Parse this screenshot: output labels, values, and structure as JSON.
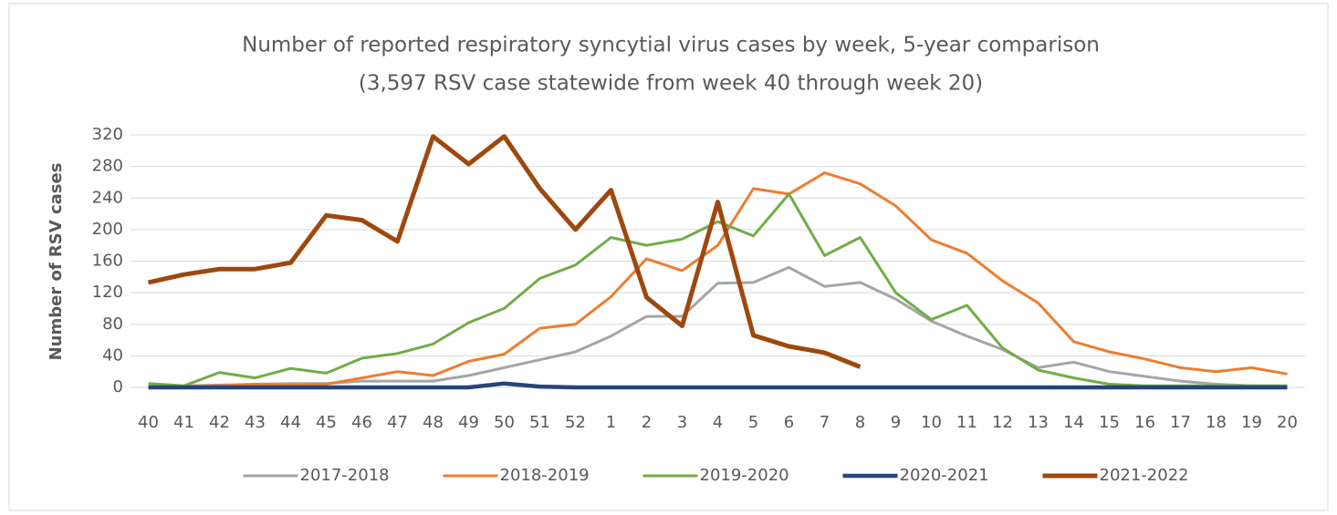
{
  "chart_data": {
    "type": "line",
    "title": "Number of reported respiratory syncytial virus cases by week, 5-year comparison",
    "subtitle": "(3,597 RSV case statewide from week 40 through week 20)",
    "y_label": "Number of RSV cases",
    "categories": [
      "40",
      "41",
      "42",
      "43",
      "44",
      "45",
      "46",
      "47",
      "48",
      "49",
      "50",
      "51",
      "52",
      "1",
      "2",
      "3",
      "4",
      "5",
      "6",
      "7",
      "8",
      "9",
      "10",
      "11",
      "12",
      "13",
      "14",
      "15",
      "16",
      "17",
      "18",
      "19",
      "20"
    ],
    "ylim": [
      0,
      320
    ],
    "yticks": [
      0,
      40,
      80,
      120,
      160,
      200,
      240,
      280,
      320
    ],
    "grid": true,
    "legend": "bottom",
    "series": [
      {
        "name": "2017-2018",
        "color": "#a5a5a5",
        "width": 3,
        "values": [
          2,
          2,
          3,
          4,
          5,
          5,
          8,
          8,
          8,
          15,
          25,
          35,
          45,
          65,
          90,
          90,
          132,
          133,
          152,
          128,
          133,
          112,
          84,
          65,
          48,
          25,
          32,
          20,
          14,
          8,
          4,
          2,
          2
        ]
      },
      {
        "name": "2018-2019",
        "color": "#ed7d31",
        "width": 3,
        "values": [
          0,
          1,
          2,
          4,
          3,
          4,
          12,
          20,
          15,
          33,
          42,
          75,
          80,
          115,
          163,
          148,
          180,
          252,
          245,
          272,
          258,
          230,
          187,
          170,
          135,
          107,
          58,
          45,
          36,
          25,
          20,
          25,
          17
        ]
      },
      {
        "name": "2019-2020",
        "color": "#70ad47",
        "width": 3,
        "values": [
          5,
          2,
          19,
          12,
          24,
          18,
          37,
          43,
          55,
          82,
          100,
          138,
          155,
          190,
          180,
          188,
          210,
          192,
          245,
          167,
          190,
          120,
          86,
          104,
          50,
          22,
          12,
          4,
          2,
          2,
          2,
          2,
          2
        ]
      },
      {
        "name": "2020-2021",
        "color": "#264478",
        "width": 4.5,
        "values": [
          0,
          0,
          0,
          0,
          0,
          0,
          0,
          0,
          0,
          0,
          5,
          1,
          0,
          0,
          0,
          0,
          0,
          0,
          0,
          0,
          0,
          0,
          0,
          0,
          0,
          0,
          0,
          0,
          0,
          0,
          0,
          0,
          0
        ]
      },
      {
        "name": "2021-2022",
        "color": "#9e480e",
        "width": 5,
        "values": [
          133,
          143,
          150,
          150,
          158,
          218,
          212,
          185,
          318,
          283,
          318,
          252,
          200,
          250,
          114,
          78,
          235,
          66,
          52,
          44,
          26,
          null,
          null,
          null,
          null,
          null,
          null,
          null,
          null,
          null,
          null,
          null,
          null
        ]
      }
    ]
  }
}
